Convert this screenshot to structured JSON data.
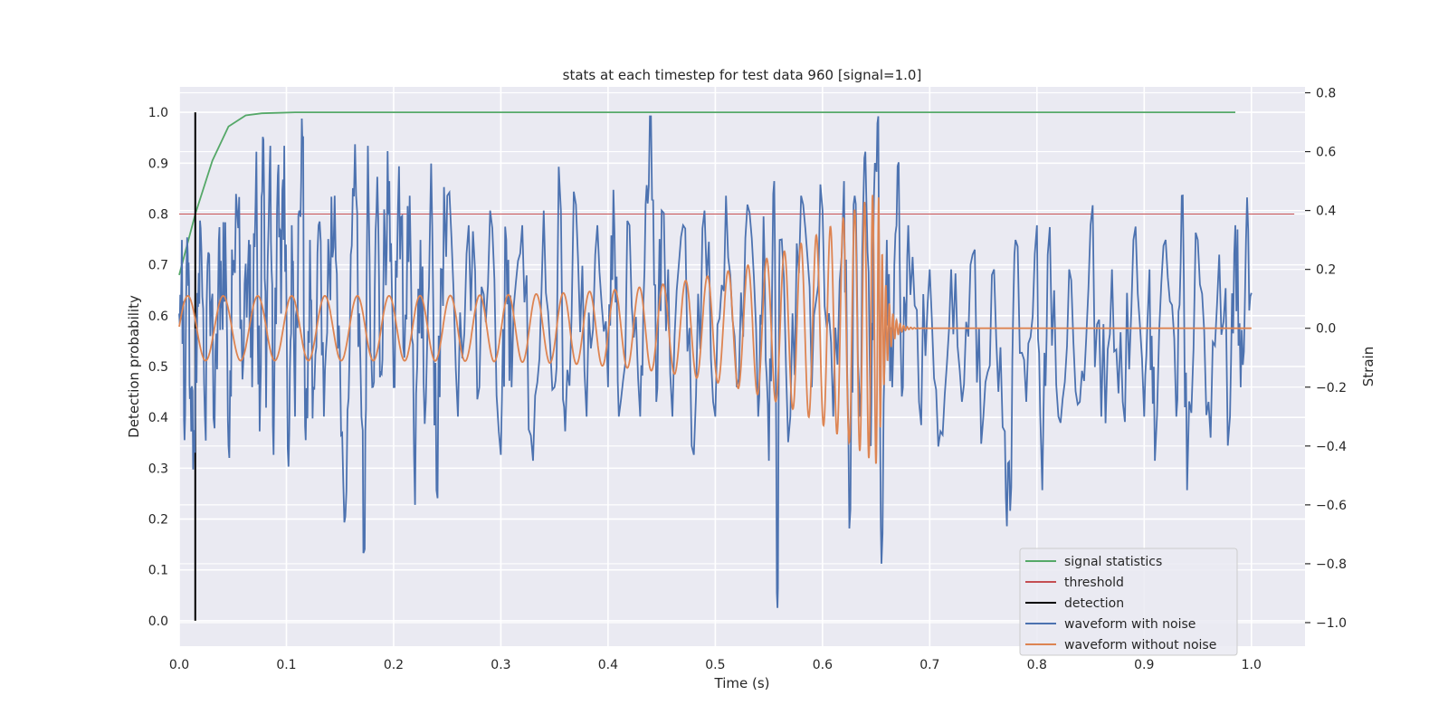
{
  "chart_data": {
    "type": "line",
    "title": "stats at each timestep for test data 960 [signal=1.0]",
    "xlabel": "Time (s)",
    "ylabel_left": "Detection probability",
    "ylabel_right": "Strain",
    "xlim": [
      0.0,
      1.05
    ],
    "ylim_left": [
      -0.05,
      1.05
    ],
    "ylim_right": [
      -1.08,
      0.82
    ],
    "x_ticks": [
      "0.0",
      "0.1",
      "0.2",
      "0.3",
      "0.4",
      "0.5",
      "0.6",
      "0.7",
      "0.8",
      "0.9",
      "1.0"
    ],
    "y_ticks_left": [
      "0.0",
      "0.1",
      "0.2",
      "0.3",
      "0.4",
      "0.5",
      "0.6",
      "0.7",
      "0.8",
      "0.9",
      "1.0"
    ],
    "y_ticks_right": [
      "−1.0",
      "−0.8",
      "−0.6",
      "−0.4",
      "−0.2",
      "0.0",
      "0.2",
      "0.4",
      "0.6",
      "0.8"
    ],
    "grid": true,
    "legend_position": "bottom-right",
    "colors": {
      "background": "#eaeaf2",
      "grid": "#ffffff",
      "signal_statistics": "#55a868",
      "threshold": "#c44e52",
      "detection": "#000000",
      "waveform_with_noise": "#4c72b0",
      "waveform_without_noise": "#dd8452"
    },
    "series": [
      {
        "name": "signal statistics",
        "axis": "left",
        "x": [
          0.0,
          0.015,
          0.031,
          0.046,
          0.062,
          0.077,
          0.092,
          0.108,
          0.2,
          0.4,
          0.6,
          0.8,
          0.985
        ],
        "y": [
          0.68,
          0.8,
          0.905,
          0.972,
          0.994,
          0.998,
          0.999,
          1.0,
          1.0,
          1.0,
          1.0,
          1.0,
          1.0
        ]
      },
      {
        "name": "threshold",
        "axis": "left",
        "x": [
          0.0,
          1.04
        ],
        "y": [
          0.8,
          0.8
        ]
      },
      {
        "name": "detection",
        "axis": "left",
        "x": [
          0.015,
          0.015
        ],
        "y": [
          0.0,
          1.0
        ]
      },
      {
        "name": "waveform with noise",
        "axis": "right",
        "description": "noisy strain time series, roughly 1000 samples over 0–1 s, amplitude mostly within ±0.45, extremes near 0.78 and −1.0",
        "points": [
          [
            0.0,
            0.05
          ],
          [
            0.0025,
            0.3
          ],
          [
            0.005,
            -0.38
          ],
          [
            0.008,
            0.25
          ],
          [
            0.01,
            -0.24
          ],
          [
            0.013,
            -0.48
          ],
          [
            0.017,
            0.12
          ],
          [
            0.02,
            0.34
          ],
          [
            0.024,
            -0.3
          ],
          [
            0.028,
            0.25
          ],
          [
            0.033,
            -0.34
          ],
          [
            0.037,
            0.3
          ],
          [
            0.04,
            0.08
          ],
          [
            0.043,
            0.36
          ],
          [
            0.046,
            -0.4
          ],
          [
            0.05,
            0.18
          ],
          [
            0.055,
            0.34
          ],
          [
            0.06,
            -0.1
          ],
          [
            0.065,
            0.3
          ],
          [
            0.068,
            -0.2
          ],
          [
            0.072,
            0.6
          ],
          [
            0.075,
            -0.35
          ],
          [
            0.078,
            0.65
          ],
          [
            0.081,
            -0.27
          ],
          [
            0.085,
            0.62
          ],
          [
            0.088,
            -0.43
          ],
          [
            0.092,
            0.52
          ],
          [
            0.095,
            0.05
          ],
          [
            0.098,
            0.62
          ],
          [
            0.102,
            -0.47
          ],
          [
            0.105,
            0.35
          ],
          [
            0.108,
            -0.3
          ],
          [
            0.112,
            0.4
          ],
          [
            0.115,
            0.63
          ],
          [
            0.118,
            -0.38
          ],
          [
            0.122,
            0.3
          ],
          [
            0.125,
            -0.2
          ],
          [
            0.13,
            0.35
          ],
          [
            0.135,
            -0.3
          ],
          [
            0.14,
            0.2
          ],
          [
            0.145,
            0.45
          ],
          [
            0.15,
            -0.1
          ],
          [
            0.155,
            -0.64
          ],
          [
            0.16,
            0.25
          ],
          [
            0.165,
            0.45
          ],
          [
            0.17,
            -0.3
          ],
          [
            0.173,
            -0.75
          ],
          [
            0.176,
            0.62
          ],
          [
            0.18,
            -0.2
          ],
          [
            0.184,
            0.4
          ],
          [
            0.188,
            -0.15
          ],
          [
            0.192,
            0.3
          ],
          [
            0.196,
            0.5
          ],
          [
            0.2,
            -0.2
          ],
          [
            0.205,
            0.55
          ],
          [
            0.21,
            -0.1
          ],
          [
            0.215,
            0.45
          ],
          [
            0.22,
            -0.6
          ],
          [
            0.225,
            0.3
          ],
          [
            0.23,
            -0.25
          ],
          [
            0.235,
            0.56
          ],
          [
            0.24,
            -0.55
          ],
          [
            0.245,
            0.2
          ],
          [
            0.25,
            0.45
          ],
          [
            0.26,
            -0.3
          ],
          [
            0.27,
            0.35
          ],
          [
            0.28,
            -0.2
          ],
          [
            0.29,
            0.4
          ],
          [
            0.3,
            -0.43
          ],
          [
            0.305,
            0.3
          ],
          [
            0.31,
            -0.2
          ],
          [
            0.32,
            0.35
          ],
          [
            0.33,
            -0.45
          ],
          [
            0.34,
            0.4
          ],
          [
            0.35,
            -0.2
          ],
          [
            0.355,
            0.47
          ],
          [
            0.36,
            -0.35
          ],
          [
            0.37,
            0.42
          ],
          [
            0.38,
            -0.3
          ],
          [
            0.39,
            0.35
          ],
          [
            0.4,
            -0.2
          ],
          [
            0.405,
            0.47
          ],
          [
            0.41,
            -0.3
          ],
          [
            0.42,
            0.35
          ],
          [
            0.43,
            -0.3
          ],
          [
            0.435,
            0.42
          ],
          [
            0.44,
            0.72
          ],
          [
            0.445,
            -0.25
          ],
          [
            0.45,
            0.4
          ],
          [
            0.46,
            -0.3
          ],
          [
            0.47,
            0.35
          ],
          [
            0.48,
            -0.43
          ],
          [
            0.49,
            0.4
          ],
          [
            0.5,
            -0.3
          ],
          [
            0.51,
            0.45
          ],
          [
            0.52,
            -0.2
          ],
          [
            0.53,
            0.42
          ],
          [
            0.54,
            -0.3
          ],
          [
            0.545,
            0.38
          ],
          [
            0.55,
            -0.45
          ],
          [
            0.555,
            0.5
          ],
          [
            0.558,
            -1.0
          ],
          [
            0.56,
            0.3
          ],
          [
            0.57,
            -0.3
          ],
          [
            0.58,
            0.45
          ],
          [
            0.59,
            -0.2
          ],
          [
            0.6,
            0.4
          ],
          [
            0.61,
            -0.3
          ],
          [
            0.62,
            0.5
          ],
          [
            0.625,
            -0.68
          ],
          [
            0.63,
            0.45
          ],
          [
            0.635,
            -0.3
          ],
          [
            0.64,
            0.6
          ],
          [
            0.645,
            -0.4
          ],
          [
            0.648,
            0.45
          ],
          [
            0.652,
            0.78
          ],
          [
            0.655,
            -0.8
          ],
          [
            0.66,
            0.3
          ],
          [
            0.665,
            -0.2
          ],
          [
            0.67,
            0.55
          ],
          [
            0.675,
            -0.2
          ],
          [
            0.68,
            0.35
          ],
          [
            0.69,
            -0.25
          ],
          [
            0.7,
            0.2
          ],
          [
            0.71,
            -0.35
          ],
          [
            0.72,
            0.2
          ],
          [
            0.73,
            -0.25
          ],
          [
            0.74,
            0.25
          ],
          [
            0.75,
            -0.3
          ],
          [
            0.76,
            0.2
          ],
          [
            0.77,
            -0.35
          ],
          [
            0.775,
            -0.62
          ],
          [
            0.78,
            0.3
          ],
          [
            0.79,
            -0.25
          ],
          [
            0.8,
            0.35
          ],
          [
            0.805,
            -0.55
          ],
          [
            0.81,
            0.25
          ],
          [
            0.82,
            -0.3
          ],
          [
            0.83,
            0.2
          ],
          [
            0.84,
            -0.25
          ],
          [
            0.85,
            0.35
          ],
          [
            0.86,
            -0.3
          ],
          [
            0.87,
            0.2
          ],
          [
            0.88,
            -0.25
          ],
          [
            0.89,
            0.3
          ],
          [
            0.9,
            -0.3
          ],
          [
            0.905,
            0.2
          ],
          [
            0.91,
            -0.45
          ],
          [
            0.92,
            0.3
          ],
          [
            0.93,
            -0.3
          ],
          [
            0.935,
            0.45
          ],
          [
            0.94,
            -0.55
          ],
          [
            0.95,
            0.3
          ],
          [
            0.96,
            -0.25
          ],
          [
            0.97,
            0.25
          ],
          [
            0.98,
            -0.3
          ],
          [
            0.985,
            0.35
          ],
          [
            0.99,
            -0.2
          ],
          [
            0.995,
            0.3
          ],
          [
            1.0,
            0.12
          ]
        ]
      },
      {
        "name": "waveform without noise",
        "axis": "right",
        "description": "chirp: oscillation with amplitude ~0.11 growing to ~0.47 while frequency increases up to merger near t=0.65 s, then ringdown to 0 by ~0.68 s",
        "t_merger": 0.652,
        "amp_start": 0.11,
        "amp_peak": 0.47,
        "t_end": 1.0
      }
    ]
  },
  "legend": [
    {
      "label": "signal statistics",
      "color": "#55a868"
    },
    {
      "label": "threshold",
      "color": "#c44e52"
    },
    {
      "label": "detection",
      "color": "#000000"
    },
    {
      "label": "waveform with noise",
      "color": "#4c72b0"
    },
    {
      "label": "waveform without noise",
      "color": "#dd8452"
    }
  ]
}
